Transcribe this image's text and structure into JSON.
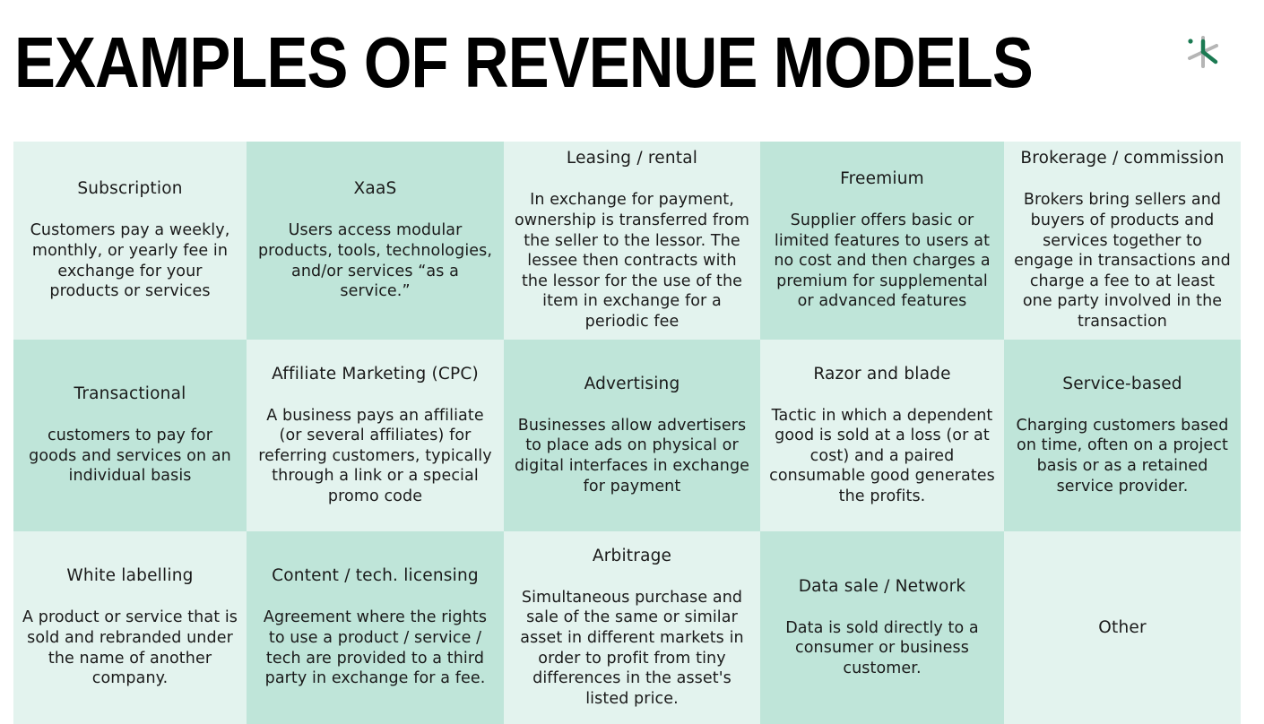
{
  "page": {
    "title": "EXAMPLES OF REVENUE MODELS",
    "logo_icon": "asterisk-logo-icon",
    "colors": {
      "cell_light": "#e3f3ee",
      "cell_dark": "#bfe5d9",
      "logo_green": "#1b7a52",
      "logo_grey": "#b5b5b5"
    }
  },
  "models": [
    {
      "name": "Subscription",
      "description": "Customers pay a weekly, monthly, or yearly fee in exchange for your products or services"
    },
    {
      "name": "XaaS",
      "description": "Users access modular products, tools, technologies, and/or services “as a service.”"
    },
    {
      "name": "Leasing / rental",
      "description": "In exchange for payment, ownership is transferred from the seller to the lessor. The lessee then contracts with the lessor for the use of the item in exchange for a periodic fee"
    },
    {
      "name": "Freemium",
      "description": "Supplier offers basic or limited features to users at no cost and then charges a premium for supplemental or advanced features"
    },
    {
      "name": "Brokerage / commission",
      "description": "Brokers bring sellers and buyers of products and services together to engage in transactions and charge a fee to at least one party involved in the transaction"
    },
    {
      "name": "Transactional",
      "description": "customers to pay for goods and services on an individual basis"
    },
    {
      "name": "Affiliate Marketing (CPC)",
      "description": "A business pays an affiliate (or several affiliates) for referring customers, typically through a link or a special promo code"
    },
    {
      "name": "Advertising",
      "description": "Businesses allow advertisers to place ads on physical or digital interfaces in exchange for payment"
    },
    {
      "name": "Razor and blade",
      "description": "Tactic in which a dependent good is sold at a loss (or at cost) and a paired consumable good generates the profits."
    },
    {
      "name": "Service-based",
      "description": "Charging customers based on time, often on a project basis or as a retained service provider."
    },
    {
      "name": "White labelling",
      "description": "A product or service that is sold and rebranded under the name of another company."
    },
    {
      "name": "Content / tech. licensing",
      "description": "Agreement where the rights to use a product / service / tech are provided to a third party in exchange for a fee."
    },
    {
      "name": "Arbitrage",
      "description": "Simultaneous purchase and sale of the same or similar asset in different markets in order to profit from tiny differences in the asset's listed price."
    },
    {
      "name": "Data sale / Network",
      "description": "Data is sold directly to a consumer or business customer."
    },
    {
      "name": "Other",
      "description": ""
    }
  ]
}
